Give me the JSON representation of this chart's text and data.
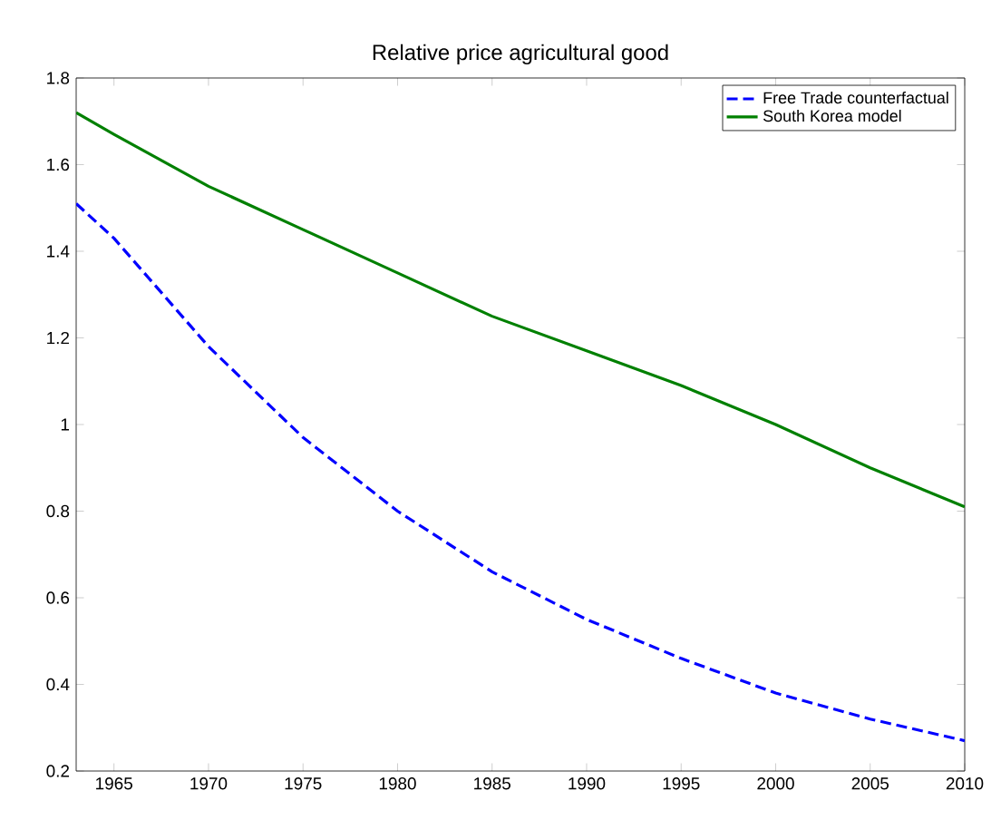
{
  "chart_data": {
    "type": "line",
    "title": "Relative price agricultural good",
    "xlim": [
      1963,
      2010
    ],
    "ylim": [
      0.2,
      1.8
    ],
    "xticks": [
      1965,
      1970,
      1975,
      1980,
      1985,
      1990,
      1995,
      2000,
      2005,
      2010
    ],
    "yticks": [
      0.2,
      0.4,
      0.6,
      0.8,
      1,
      1.2,
      1.4,
      1.6,
      1.8
    ],
    "legend": "top right",
    "grid": false,
    "x": [
      1963,
      1965,
      1970,
      1975,
      1980,
      1985,
      1990,
      1995,
      2000,
      2005,
      2010
    ],
    "series": [
      {
        "name": "Free Trade counterfactual",
        "color": "#0000ff",
        "line_style": "dashed",
        "values": [
          1.51,
          1.43,
          1.18,
          0.97,
          0.8,
          0.66,
          0.55,
          0.46,
          0.38,
          0.32,
          0.27
        ]
      },
      {
        "name": "South Korea model",
        "color": "#008000",
        "line_style": "solid",
        "values": [
          1.72,
          1.67,
          1.55,
          1.45,
          1.35,
          1.25,
          1.17,
          1.09,
          1.0,
          0.9,
          0.81
        ]
      }
    ]
  }
}
